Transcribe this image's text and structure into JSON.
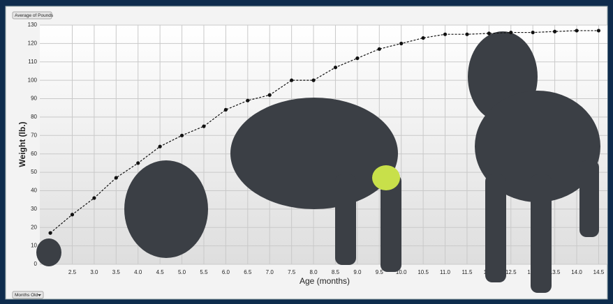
{
  "chart_data": {
    "type": "line",
    "value_field": "Average of Pounds",
    "axis_field": "Months Old",
    "x_label": "Age (months)",
    "y_label": "Weight (lb.)",
    "x": [
      2.0,
      2.5,
      3.0,
      3.5,
      4.0,
      4.5,
      5.0,
      5.5,
      6.0,
      6.5,
      7.0,
      7.5,
      8.0,
      8.5,
      9.0,
      9.5,
      10.0,
      10.5,
      11.0,
      11.5,
      12.0,
      12.5,
      13.0,
      13.5,
      14.0,
      14.5
    ],
    "values": [
      17,
      27,
      36,
      47,
      55,
      64,
      70,
      75,
      84,
      89,
      92,
      100,
      100,
      107,
      112,
      117,
      120,
      123,
      125,
      125,
      125.5,
      126,
      126,
      126.5,
      127,
      127
    ],
    "color": "#111111",
    "dashed": true,
    "markers": true,
    "xlim": [
      1.76,
      14.7
    ],
    "ylim": [
      0,
      130
    ],
    "xticks": [
      2.5,
      {
        "value": 3,
        "label": "3.0"
      },
      3.5,
      {
        "value": 4,
        "label": "4.0"
      },
      4.5,
      {
        "value": 5,
        "label": "5.0"
      },
      5.5,
      {
        "value": 6,
        "label": "6.0"
      },
      6.5,
      {
        "value": 7,
        "label": "7.0"
      },
      7.5,
      {
        "value": 8,
        "label": "8.0"
      },
      8.5,
      {
        "value": 9,
        "label": "9.0"
      },
      9.5,
      {
        "value": 10,
        "label": "10.0"
      },
      10.5,
      {
        "value": 11,
        "label": "11.0"
      },
      11.5,
      {
        "value": 12,
        "label": "12.0"
      },
      12.5,
      {
        "value": 13,
        "label": "13.0"
      },
      13.5,
      {
        "value": 14,
        "label": "14.0"
      },
      14.5
    ],
    "yticks": [
      0,
      10,
      20,
      30,
      40,
      50,
      60,
      70,
      80,
      90,
      100,
      110,
      120,
      130
    ],
    "grid": true
  }
}
